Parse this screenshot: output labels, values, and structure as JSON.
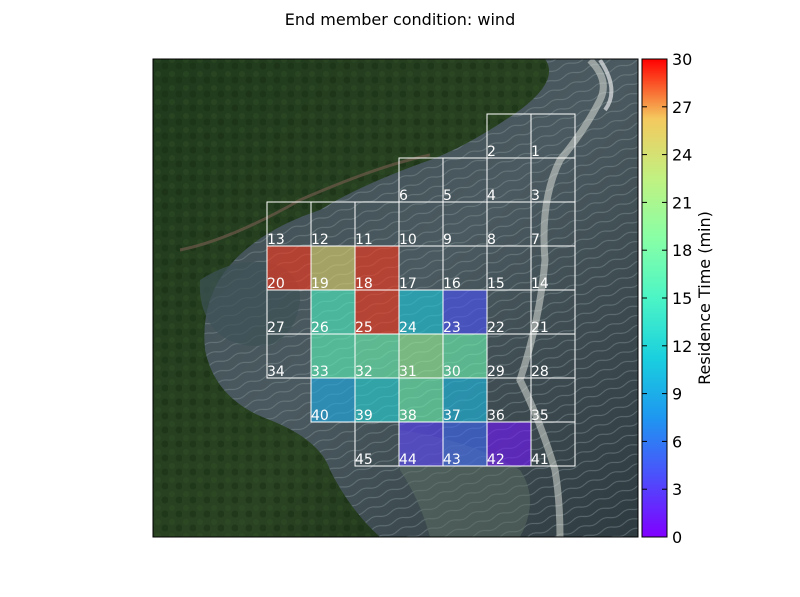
{
  "chart_data": {
    "type": "heatmap",
    "title": "End member condition: wind",
    "background": "satellite-coastal-image",
    "colormap": "rainbow",
    "colorbar": {
      "label": "Residence Time (min)",
      "range": [
        0,
        30
      ],
      "ticks": [
        0,
        3,
        6,
        9,
        12,
        15,
        18,
        21,
        24,
        27,
        30
      ]
    },
    "grid": {
      "rows": 8,
      "cols": 7,
      "cells": [
        {
          "id": "1",
          "row": 0,
          "col": 6,
          "value": null
        },
        {
          "id": "2",
          "row": 0,
          "col": 5,
          "value": null
        },
        {
          "id": "3",
          "row": 1,
          "col": 6,
          "value": null
        },
        {
          "id": "4",
          "row": 1,
          "col": 5,
          "value": null
        },
        {
          "id": "5",
          "row": 1,
          "col": 4,
          "value": null
        },
        {
          "id": "6",
          "row": 1,
          "col": 3,
          "value": null
        },
        {
          "id": "7",
          "row": 2,
          "col": 6,
          "value": null
        },
        {
          "id": "8",
          "row": 2,
          "col": 5,
          "value": null
        },
        {
          "id": "9",
          "row": 2,
          "col": 4,
          "value": null
        },
        {
          "id": "10",
          "row": 2,
          "col": 3,
          "value": null
        },
        {
          "id": "11",
          "row": 2,
          "col": 2,
          "value": null
        },
        {
          "id": "12",
          "row": 2,
          "col": 1,
          "value": null
        },
        {
          "id": "13",
          "row": 2,
          "col": 0,
          "value": null
        },
        {
          "id": "14",
          "row": 3,
          "col": 6,
          "value": null
        },
        {
          "id": "15",
          "row": 3,
          "col": 5,
          "value": null
        },
        {
          "id": "16",
          "row": 3,
          "col": 4,
          "value": null
        },
        {
          "id": "17",
          "row": 3,
          "col": 3,
          "value": null
        },
        {
          "id": "18",
          "row": 3,
          "col": 2,
          "value": 29
        },
        {
          "id": "19",
          "row": 3,
          "col": 1,
          "value": 25
        },
        {
          "id": "20",
          "row": 3,
          "col": 0,
          "value": 29
        },
        {
          "id": "21",
          "row": 4,
          "col": 6,
          "value": null
        },
        {
          "id": "22",
          "row": 4,
          "col": 5,
          "value": null
        },
        {
          "id": "23",
          "row": 4,
          "col": 4,
          "value": 4
        },
        {
          "id": "24",
          "row": 4,
          "col": 3,
          "value": 11
        },
        {
          "id": "25",
          "row": 4,
          "col": 2,
          "value": 29
        },
        {
          "id": "26",
          "row": 4,
          "col": 1,
          "value": 15
        },
        {
          "id": "27",
          "row": 4,
          "col": 0,
          "value": null
        },
        {
          "id": "28",
          "row": 5,
          "col": 6,
          "value": null
        },
        {
          "id": "29",
          "row": 5,
          "col": 5,
          "value": null
        },
        {
          "id": "30",
          "row": 5,
          "col": 4,
          "value": 17
        },
        {
          "id": "31",
          "row": 5,
          "col": 3,
          "value": 20
        },
        {
          "id": "32",
          "row": 5,
          "col": 2,
          "value": 17
        },
        {
          "id": "33",
          "row": 5,
          "col": 1,
          "value": 16
        },
        {
          "id": "34",
          "row": 5,
          "col": 0,
          "value": null
        },
        {
          "id": "35",
          "row": 6,
          "col": 6,
          "value": null
        },
        {
          "id": "36",
          "row": 6,
          "col": 5,
          "value": null
        },
        {
          "id": "37",
          "row": 6,
          "col": 4,
          "value": 10
        },
        {
          "id": "38",
          "row": 6,
          "col": 3,
          "value": 17
        },
        {
          "id": "39",
          "row": 6,
          "col": 2,
          "value": 12
        },
        {
          "id": "40",
          "row": 6,
          "col": 1,
          "value": 9
        },
        {
          "id": "41",
          "row": 7,
          "col": 6,
          "value": null
        },
        {
          "id": "42",
          "row": 7,
          "col": 5,
          "value": 1
        },
        {
          "id": "43",
          "row": 7,
          "col": 4,
          "value": 5
        },
        {
          "id": "44",
          "row": 7,
          "col": 3,
          "value": 3
        },
        {
          "id": "45",
          "row": 7,
          "col": 2,
          "value": null
        }
      ]
    }
  }
}
